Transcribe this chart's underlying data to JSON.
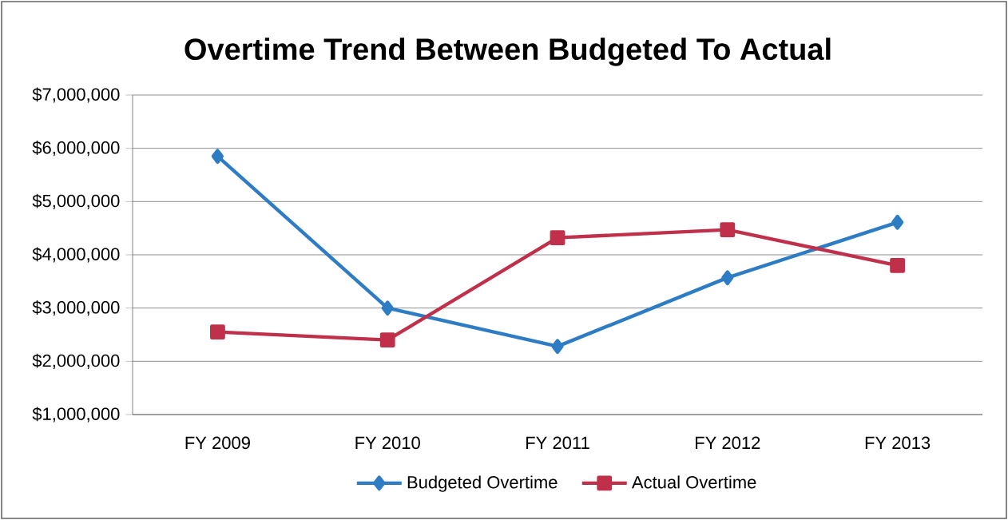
{
  "chart_data": {
    "type": "line",
    "title": "Overtime Trend Between Budgeted To Actual",
    "categories": [
      "FY 2009",
      "FY 2010",
      "FY 2011",
      "FY 2012",
      "FY 2013"
    ],
    "series": [
      {
        "name": "Budgeted Overtime",
        "color": "#2e7dc4",
        "marker": "diamond",
        "values": [
          5850000,
          3000000,
          2280000,
          3570000,
          4610000
        ]
      },
      {
        "name": "Actual Overtime",
        "color": "#c0304a",
        "marker": "square",
        "values": [
          2550000,
          2400000,
          4320000,
          4470000,
          3800000
        ]
      }
    ],
    "ylim": [
      1000000,
      7000000
    ],
    "yticks": [
      {
        "value": 1000000,
        "label": "$1,000,000"
      },
      {
        "value": 2000000,
        "label": "$2,000,000"
      },
      {
        "value": 3000000,
        "label": "$3,000,000"
      },
      {
        "value": 4000000,
        "label": "$4,000,000"
      },
      {
        "value": 5000000,
        "label": "$5,000,000"
      },
      {
        "value": 6000000,
        "label": "$6,000,000"
      },
      {
        "value": 7000000,
        "label": "$7,000,000"
      }
    ],
    "grid": "y",
    "legend": "bottom",
    "line_style": "solid"
  }
}
